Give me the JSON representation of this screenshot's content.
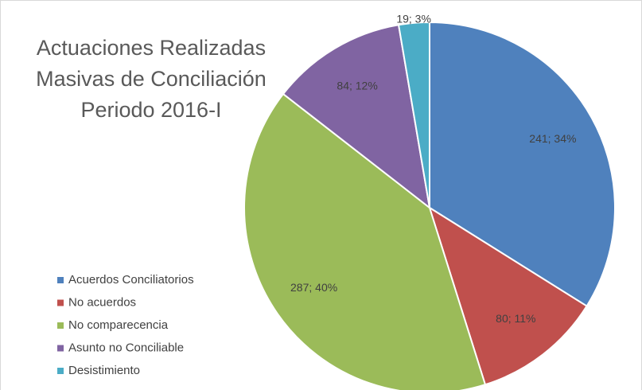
{
  "chart_data": {
    "type": "pie",
    "title": [
      "Actuaciones Realizadas",
      "Masivas de Conciliación",
      "Periodo 2016-I"
    ],
    "categories": [
      "Acuerdos Conciliatorios",
      "No acuerdos",
      "No comparecencia",
      "Asunto no Conciliable",
      "Desistimiento"
    ],
    "values": [
      241,
      80,
      287,
      84,
      19
    ],
    "value_labels": [
      "241; 34%",
      "80; 11%",
      "287; 40%",
      "84; 12%",
      "19; 3%"
    ],
    "colors": [
      "#4f81bd",
      "#c0504d",
      "#9bbb59",
      "#8064a2",
      "#4bacc6"
    ],
    "legend": "left"
  }
}
